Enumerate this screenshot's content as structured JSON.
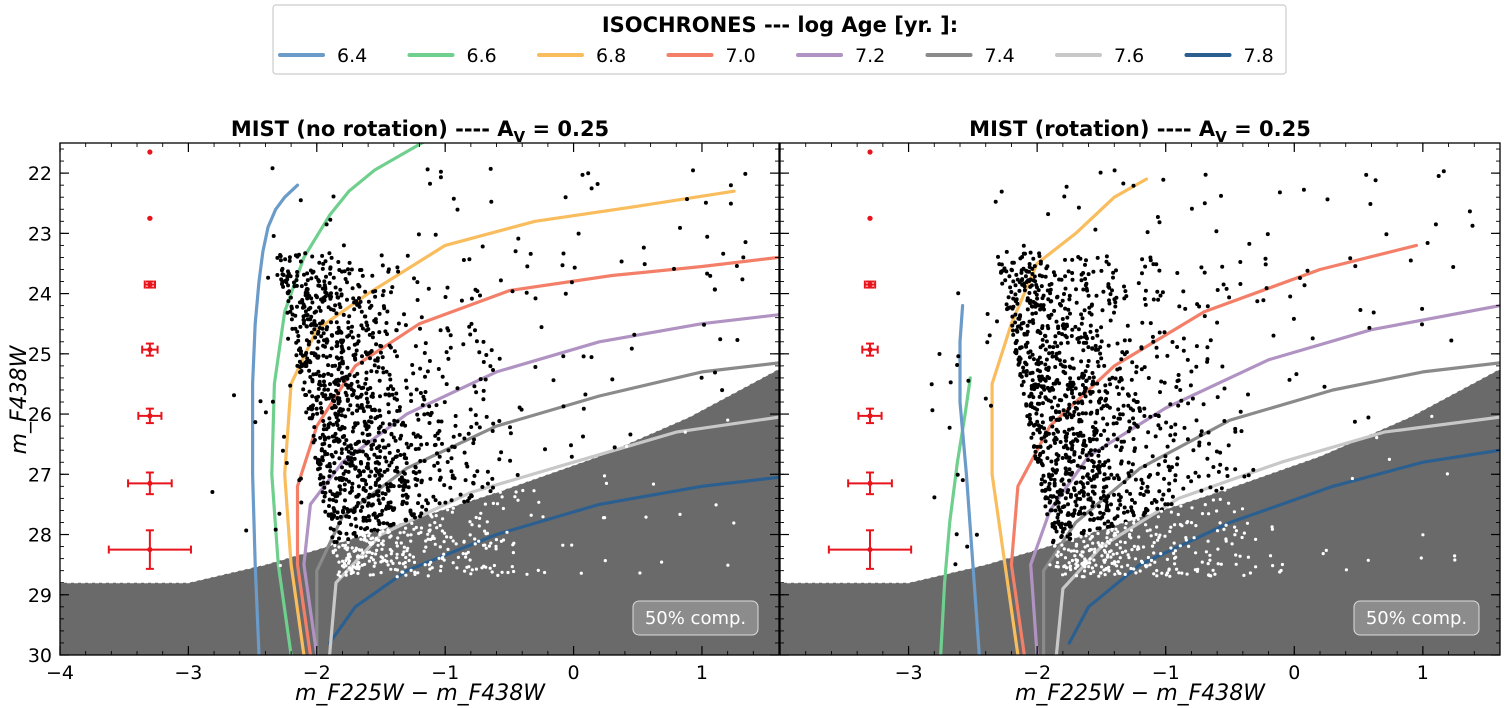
{
  "legend": {
    "title": "ISOCHRONES --- log Age [yr. ]:",
    "entries": [
      {
        "label": "6.4",
        "color": "#6b9bc8"
      },
      {
        "label": "6.6",
        "color": "#6fd08e"
      },
      {
        "label": "6.8",
        "color": "#f9bd5e"
      },
      {
        "label": "7.0",
        "color": "#f47f69"
      },
      {
        "label": "7.2",
        "color": "#b093c2"
      },
      {
        "label": "7.4",
        "color": "#8a8a8a"
      },
      {
        "label": "7.6",
        "color": "#c8c8c8"
      },
      {
        "label": "7.8",
        "color": "#2b5f8f"
      }
    ]
  },
  "shared": {
    "xlabel": "m_F225W − m_F438W",
    "ylabel": "m_F438W",
    "xlim": [
      -4,
      1.6
    ],
    "ylim": [
      30,
      21.5
    ],
    "x_ticks": [
      "−4",
      "−3",
      "−2",
      "−1",
      "0",
      "1"
    ],
    "y_ticks": [
      "22",
      "23",
      "24",
      "25",
      "26",
      "27",
      "28",
      "29",
      "30"
    ],
    "completeness_label": "50% comp."
  },
  "chart_data": [
    {
      "type": "scatter",
      "title": "MIST (no rotation) ---- A_V = 0.25",
      "title_main": "MIST (no rotation) ---- A",
      "title_sub": "V",
      "title_tail": " = 0.25",
      "completeness_limit": {
        "x": [
          -4,
          -3.0,
          -2.4,
          -2.0,
          -1.4,
          -0.6,
          0.2,
          0.9,
          1.6
        ],
        "y": [
          28.8,
          28.8,
          28.5,
          28.25,
          27.85,
          27.3,
          26.7,
          26.05,
          25.25
        ]
      },
      "error_bars": [
        {
          "x": -3.3,
          "y": 21.65,
          "xerr": 0.01,
          "yerr": 0.02
        },
        {
          "x": -3.3,
          "y": 22.75,
          "xerr": 0.02,
          "yerr": 0.03
        },
        {
          "x": -3.3,
          "y": 23.85,
          "xerr": 0.04,
          "yerr": 0.05
        },
        {
          "x": -3.3,
          "y": 24.93,
          "xerr": 0.06,
          "yerr": 0.1
        },
        {
          "x": -3.3,
          "y": 26.03,
          "xerr": 0.09,
          "yerr": 0.12
        },
        {
          "x": -3.3,
          "y": 27.15,
          "xerr": 0.17,
          "yerr": 0.18
        },
        {
          "x": -3.3,
          "y": 28.25,
          "xerr": 0.32,
          "yerr": 0.32
        }
      ],
      "series": [
        {
          "name": "6.4",
          "color": "#6b9bc8",
          "x": [
            -2.45,
            -2.48,
            -2.5,
            -2.5,
            -2.48,
            -2.45,
            -2.42,
            -2.38,
            -2.32,
            -2.25,
            -2.15
          ],
          "y": [
            30,
            28.5,
            27,
            25.5,
            24.5,
            23.8,
            23.3,
            22.9,
            22.6,
            22.4,
            22.2
          ]
        },
        {
          "name": "6.6",
          "color": "#6fd08e",
          "x": [
            -2.2,
            -2.3,
            -2.35,
            -2.33,
            -2.25,
            -2.1,
            -1.9,
            -1.75,
            -1.55,
            -1.1,
            -0.65
          ],
          "y": [
            30,
            28.5,
            27,
            25.5,
            24.3,
            23.4,
            22.7,
            22.3,
            21.95,
            21.4,
            21.0
          ]
        },
        {
          "name": "6.8",
          "color": "#f9bd5e",
          "x": [
            -2.1,
            -2.2,
            -2.25,
            -2.2,
            -2.0,
            -1.6,
            -1.0,
            -0.3,
            0.5,
            1.25
          ],
          "y": [
            30,
            28.5,
            27,
            25.5,
            24.6,
            24.0,
            23.2,
            22.8,
            22.55,
            22.3
          ]
        },
        {
          "name": "7.0",
          "color": "#f47f69",
          "x": [
            -2.05,
            -2.15,
            -2.15,
            -2.0,
            -1.7,
            -1.2,
            -0.5,
            0.3,
            1.0,
            1.6
          ],
          "y": [
            30,
            28.5,
            27.2,
            26.2,
            25.2,
            24.5,
            23.95,
            23.7,
            23.55,
            23.4
          ]
        },
        {
          "name": "7.2",
          "color": "#b093c2",
          "x": [
            -2.0,
            -2.1,
            -2.05,
            -1.8,
            -1.3,
            -0.6,
            0.2,
            1.0,
            1.6
          ],
          "y": [
            30,
            28.5,
            27.5,
            26.8,
            26.0,
            25.3,
            24.8,
            24.5,
            24.35
          ]
        },
        {
          "name": "7.4",
          "color": "#8a8a8a",
          "x": [
            -2.0,
            -2.0,
            -1.8,
            -1.3,
            -0.6,
            0.2,
            1.0,
            1.6
          ],
          "y": [
            30,
            28.6,
            27.7,
            26.9,
            26.2,
            25.7,
            25.3,
            25.15
          ]
        },
        {
          "name": "7.6",
          "color": "#c8c8c8",
          "x": [
            -1.9,
            -1.85,
            -1.5,
            -0.8,
            0.0,
            0.8,
            1.6
          ],
          "y": [
            30,
            28.8,
            28.0,
            27.3,
            26.8,
            26.3,
            26.05
          ]
        },
        {
          "name": "7.8",
          "color": "#2b5f8f",
          "x": [
            -1.9,
            -1.7,
            -1.3,
            -0.6,
            0.2,
            1.0,
            1.6
          ],
          "y": [
            29.8,
            29.2,
            28.6,
            28.0,
            27.5,
            27.2,
            27.05
          ]
        }
      ]
    },
    {
      "type": "scatter",
      "title": "MIST (rotation) ---- A_V = 0.25",
      "title_main": "MIST (rotation) ---- A",
      "title_sub": "V",
      "title_tail": " = 0.25",
      "completeness_limit": {
        "x": [
          -4,
          -3.0,
          -2.4,
          -2.0,
          -1.4,
          -0.6,
          0.2,
          0.9,
          1.6
        ],
        "y": [
          28.8,
          28.8,
          28.5,
          28.25,
          27.85,
          27.3,
          26.7,
          26.05,
          25.25
        ]
      },
      "error_bars": [
        {
          "x": -3.3,
          "y": 21.65,
          "xerr": 0.01,
          "yerr": 0.02
        },
        {
          "x": -3.3,
          "y": 22.75,
          "xerr": 0.02,
          "yerr": 0.03
        },
        {
          "x": -3.3,
          "y": 23.85,
          "xerr": 0.04,
          "yerr": 0.05
        },
        {
          "x": -3.3,
          "y": 24.93,
          "xerr": 0.06,
          "yerr": 0.1
        },
        {
          "x": -3.3,
          "y": 26.03,
          "xerr": 0.09,
          "yerr": 0.12
        },
        {
          "x": -3.3,
          "y": 27.15,
          "xerr": 0.17,
          "yerr": 0.18
        },
        {
          "x": -3.3,
          "y": 28.25,
          "xerr": 0.32,
          "yerr": 0.32
        }
      ],
      "series": [
        {
          "name": "6.4",
          "color": "#6b9bc8",
          "x": [
            -2.45,
            -2.5,
            -2.55,
            -2.6,
            -2.6,
            -2.58
          ],
          "y": [
            30,
            28.5,
            27.0,
            25.8,
            24.8,
            24.2
          ]
        },
        {
          "name": "6.6",
          "color": "#6fd08e",
          "x": [
            -2.75,
            -2.72,
            -2.68,
            -2.62,
            -2.56,
            -2.52
          ],
          "y": [
            30,
            28.8,
            27.8,
            26.8,
            26.0,
            25.4
          ]
        },
        {
          "name": "6.8",
          "color": "#f9bd5e",
          "x": [
            -2.15,
            -2.25,
            -2.35,
            -2.35,
            -2.2,
            -2.0,
            -1.7,
            -1.4,
            -1.15
          ],
          "y": [
            30,
            28.5,
            27.0,
            25.5,
            24.5,
            23.5,
            23.0,
            22.4,
            22.1
          ]
        },
        {
          "name": "7.0",
          "color": "#f47f69",
          "x": [
            -2.1,
            -2.2,
            -2.15,
            -1.9,
            -1.4,
            -0.7,
            0.2,
            0.95
          ],
          "y": [
            30,
            28.5,
            27.2,
            26.2,
            25.2,
            24.3,
            23.6,
            23.2
          ]
        },
        {
          "name": "7.2",
          "color": "#b093c2",
          "x": [
            -2.0,
            -2.05,
            -1.9,
            -1.6,
            -1.0,
            -0.2,
            0.6,
            1.6
          ],
          "y": [
            30,
            28.5,
            27.6,
            26.7,
            25.9,
            25.1,
            24.6,
            24.2
          ]
        },
        {
          "name": "7.4",
          "color": "#8a8a8a",
          "x": [
            -1.95,
            -1.95,
            -1.7,
            -1.2,
            -0.5,
            0.3,
            1.0,
            1.6
          ],
          "y": [
            30,
            28.6,
            27.8,
            26.9,
            26.1,
            25.6,
            25.3,
            25.15
          ]
        },
        {
          "name": "7.6",
          "color": "#c8c8c8",
          "x": [
            -1.85,
            -1.8,
            -1.5,
            -0.9,
            -0.1,
            0.7,
            1.6
          ],
          "y": [
            30,
            28.9,
            28.2,
            27.4,
            26.8,
            26.3,
            26.05
          ]
        },
        {
          "name": "7.8",
          "color": "#2b5f8f",
          "x": [
            -1.75,
            -1.6,
            -1.2,
            -0.5,
            0.3,
            1.0,
            1.6
          ],
          "y": [
            29.8,
            29.2,
            28.5,
            27.8,
            27.2,
            26.8,
            26.6
          ]
        }
      ]
    }
  ]
}
